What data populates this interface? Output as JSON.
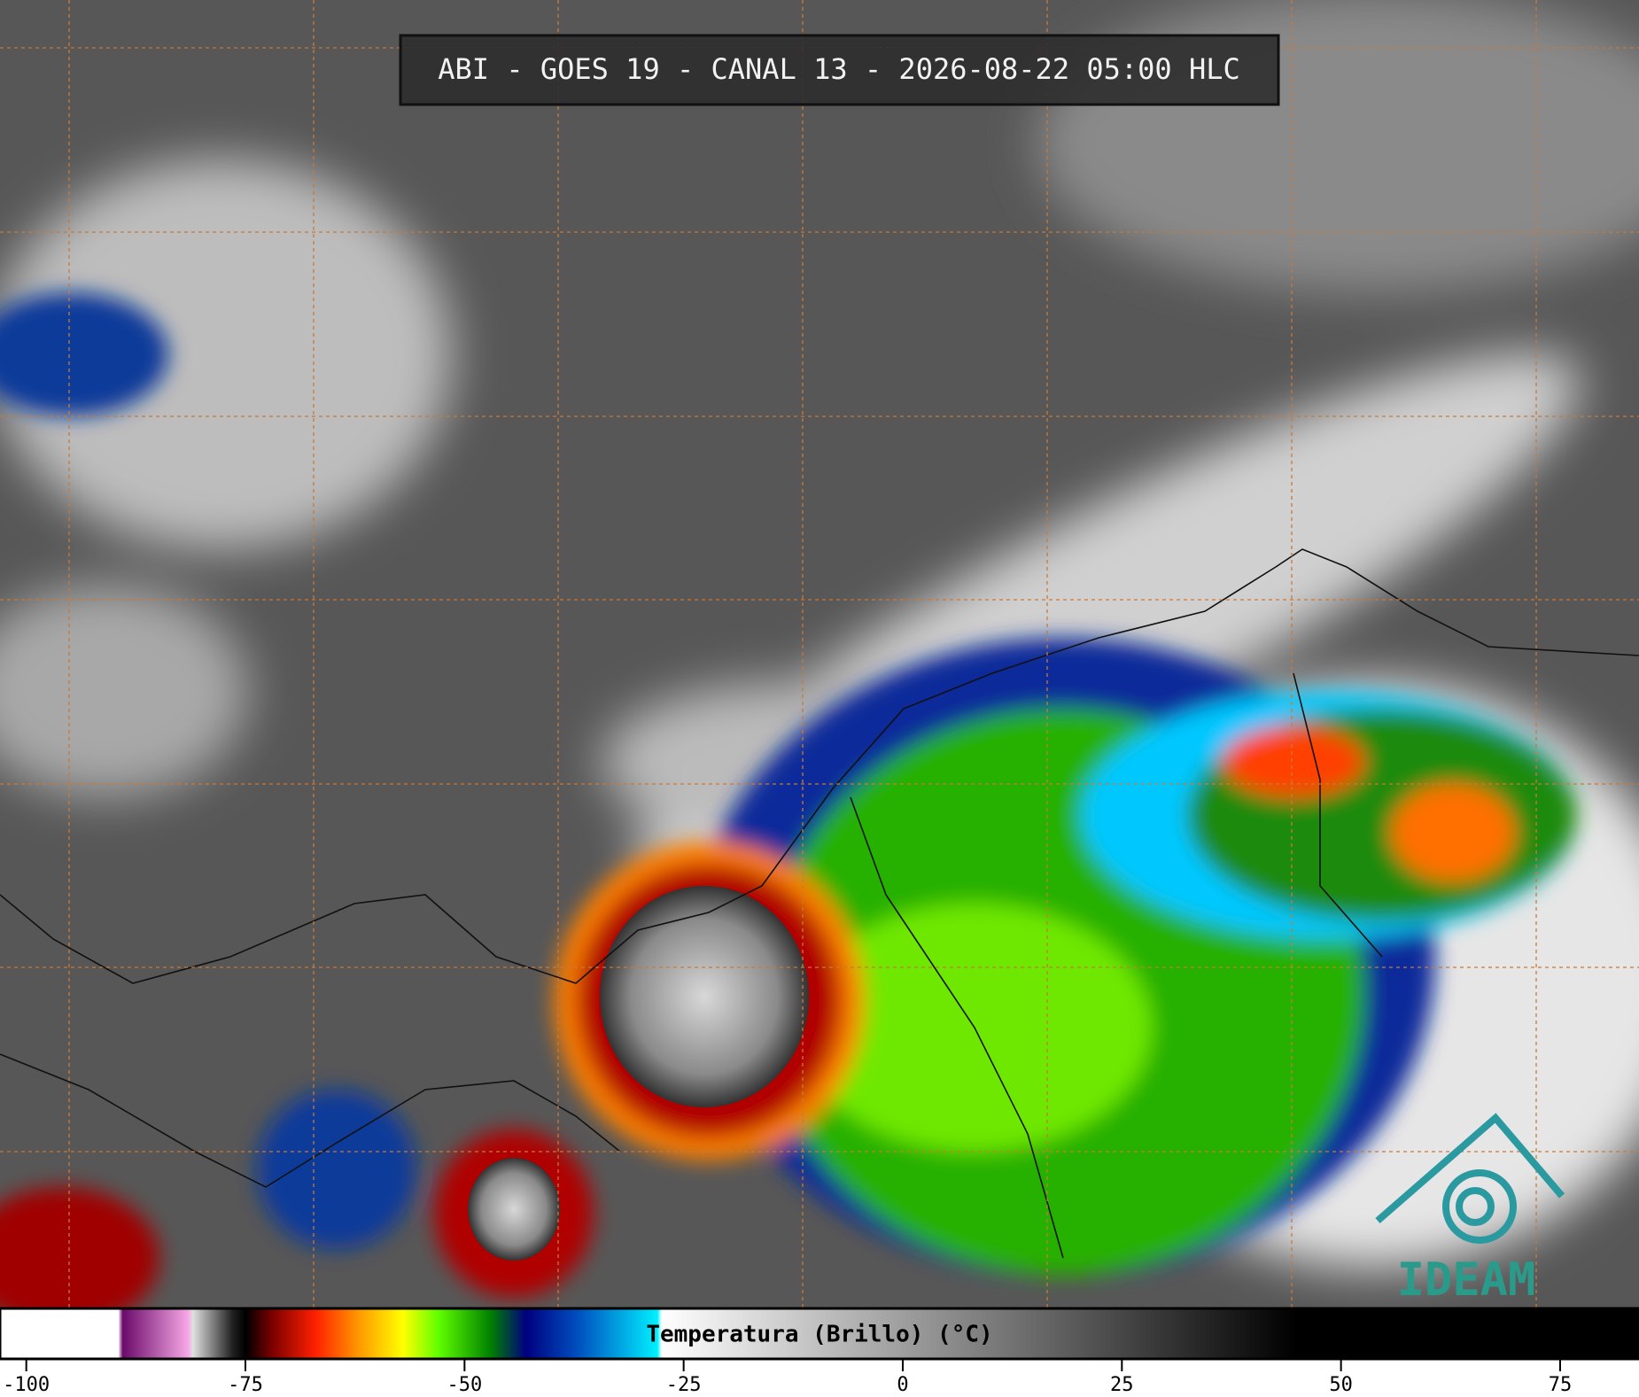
{
  "header": {
    "title": "ABI - GOES 19 - CANAL 13 - 2026-08-22 05:00 HLC"
  },
  "colorbar": {
    "label": "Temperatura (Brillo) (°C)",
    "range": [
      -103,
      84
    ],
    "ticks": [
      -100,
      -75,
      -50,
      -25,
      0,
      25,
      50,
      75
    ],
    "stops": [
      {
        "value": -103,
        "color": "#ffffff"
      },
      {
        "value": -89.5,
        "color": "#ffffff"
      },
      {
        "value": -89,
        "color": "#6a0a6a"
      },
      {
        "value": -81.5,
        "color": "#f7a8e6"
      },
      {
        "value": -81,
        "color": "#e0e0e0"
      },
      {
        "value": -76.5,
        "color": "#222222"
      },
      {
        "value": -75,
        "color": "#000000"
      },
      {
        "value": -72,
        "color": "#7a0000"
      },
      {
        "value": -67,
        "color": "#ff2000"
      },
      {
        "value": -62,
        "color": "#ff9a00"
      },
      {
        "value": -57,
        "color": "#ffff00"
      },
      {
        "value": -53,
        "color": "#60ff00"
      },
      {
        "value": -47,
        "color": "#008000"
      },
      {
        "value": -43,
        "color": "#000080"
      },
      {
        "value": -37,
        "color": "#0050c0"
      },
      {
        "value": -28,
        "color": "#00f0ff"
      },
      {
        "value": -27.5,
        "color": "#ffffff"
      },
      {
        "value": 45,
        "color": "#000000"
      },
      {
        "value": 84,
        "color": "#000000"
      }
    ]
  },
  "logo": {
    "text": "IDEAM"
  }
}
